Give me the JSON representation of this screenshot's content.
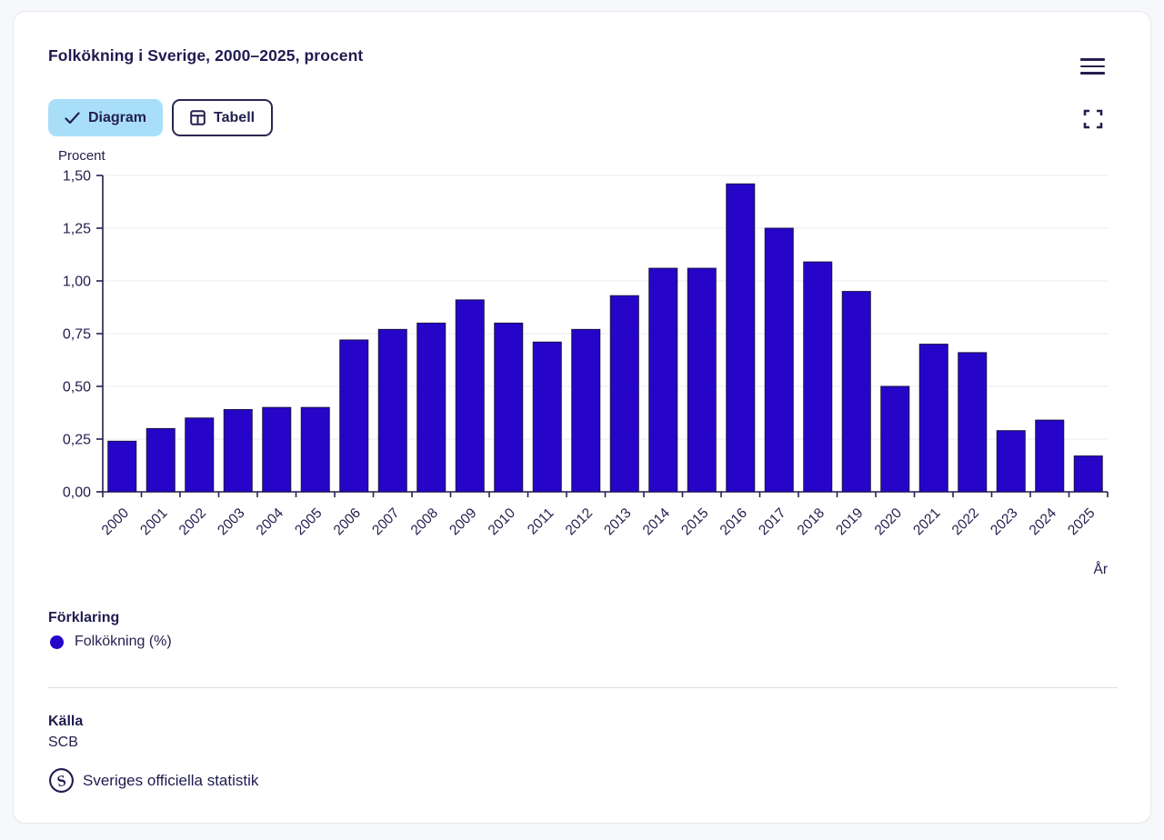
{
  "header": {
    "title": "Folkökning i Sverige, 2000–2025, procent"
  },
  "toolbar": {
    "diagram_label": "Diagram",
    "tabell_label": "Tabell"
  },
  "chart_data": {
    "type": "bar",
    "title": "Folkökning i Sverige, 2000–2025, procent",
    "ylabel": "Procent",
    "xlabel": "År",
    "categories": [
      "2000",
      "2001",
      "2002",
      "2003",
      "2004",
      "2005",
      "2006",
      "2007",
      "2008",
      "2009",
      "2010",
      "2011",
      "2012",
      "2013",
      "2014",
      "2015",
      "2016",
      "2017",
      "2018",
      "2019",
      "2020",
      "2021",
      "2022",
      "2023",
      "2024",
      "2025"
    ],
    "values": [
      0.24,
      0.3,
      0.35,
      0.39,
      0.4,
      0.4,
      0.72,
      0.77,
      0.8,
      0.91,
      0.8,
      0.71,
      0.77,
      0.93,
      1.06,
      1.06,
      1.46,
      1.25,
      1.09,
      0.95,
      0.5,
      0.7,
      0.66,
      0.29,
      0.34,
      0.17
    ],
    "ylim": [
      0,
      1.5
    ],
    "ytick_step": 0.25,
    "ytick_labels": [
      "0,00",
      "0,25",
      "0,50",
      "0,75",
      "1,00",
      "1,25",
      "1,50"
    ],
    "grid": true,
    "bar_color": "#2605c9",
    "bar_border_color": "#1b1145",
    "axis_color": "#23204e",
    "grid_color": "#ebebf0",
    "legend_position": "bottom"
  },
  "legend": {
    "heading": "Förklaring",
    "items": [
      {
        "label": "Folkökning (%)",
        "color": "#2605c9"
      }
    ]
  },
  "footer": {
    "source_heading": "Källa",
    "source": "SCB",
    "official_label": "Sveriges officiella statistik"
  },
  "colors": {
    "accent_navy": "#23204e",
    "active_button_bg": "#a9def9"
  }
}
